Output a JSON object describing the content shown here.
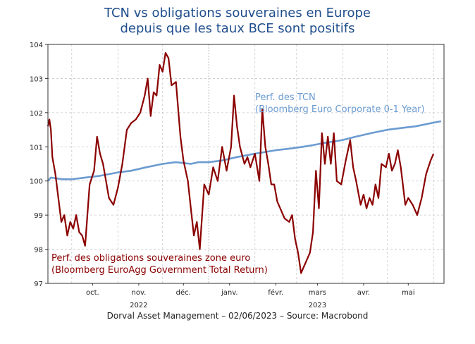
{
  "title": {
    "line1": "TCN vs obligations souveraines en Europe",
    "line2": "depuis que les taux BCE sont positifs"
  },
  "source": "Dorval Asset Management – 02/06/2023 –   Source: Macrobond",
  "colors": {
    "tcn": "#6b9bd1",
    "gov": "#8b0000",
    "title": "#1f4e8c"
  },
  "chart_data": {
    "type": "line",
    "ylim": [
      97,
      104
    ],
    "y_ticks": [
      97,
      98,
      99,
      100,
      101,
      102,
      103,
      104
    ],
    "x_range": [
      "2022-09-15",
      "2023-06-08"
    ],
    "x_ticks": [
      {
        "date": "2022-10-15",
        "label": "oct.",
        "year": ""
      },
      {
        "date": "2022-11-15",
        "label": "nov.",
        "year": "2022"
      },
      {
        "date": "2022-12-15",
        "label": "déc.",
        "year": ""
      },
      {
        "date": "2023-01-15",
        "label": "janv.",
        "year": ""
      },
      {
        "date": "2023-02-15",
        "label": "févr.",
        "year": ""
      },
      {
        "date": "2023-03-15",
        "label": "mars",
        "year": "2023"
      },
      {
        "date": "2023-04-15",
        "label": "avr.",
        "year": ""
      },
      {
        "date": "2023-05-15",
        "label": "mai",
        "year": ""
      }
    ],
    "gridlines_x": [
      "2022-10-01",
      "2022-11-01",
      "2022-12-01",
      "2023-02-01",
      "2023-03-01",
      "2023-04-01",
      "2023-05-01",
      "2023-06-01"
    ],
    "year_divider": "2023-01-01",
    "series": [
      {
        "name": "Perf. des TCN",
        "subname": "(Bloomberg Euro Corporate 0-1 Year)",
        "key": "tcn",
        "points": [
          [
            "2022-09-15",
            100.0
          ],
          [
            "2022-09-17",
            100.1
          ],
          [
            "2022-09-25",
            100.05
          ],
          [
            "2022-10-01",
            100.05
          ],
          [
            "2022-10-10",
            100.1
          ],
          [
            "2022-10-20",
            100.15
          ],
          [
            "2022-11-01",
            100.25
          ],
          [
            "2022-11-10",
            100.3
          ],
          [
            "2022-11-20",
            100.4
          ],
          [
            "2022-12-01",
            100.5
          ],
          [
            "2022-12-10",
            100.55
          ],
          [
            "2022-12-20",
            100.5
          ],
          [
            "2022-12-25",
            100.55
          ],
          [
            "2023-01-01",
            100.55
          ],
          [
            "2023-01-10",
            100.6
          ],
          [
            "2023-01-20",
            100.7
          ],
          [
            "2023-02-01",
            100.8
          ],
          [
            "2023-02-08",
            100.85
          ],
          [
            "2023-02-15",
            100.9
          ],
          [
            "2023-02-25",
            100.95
          ],
          [
            "2023-03-05",
            101.0
          ],
          [
            "2023-03-12",
            101.05
          ],
          [
            "2023-03-18",
            101.1
          ],
          [
            "2023-03-25",
            101.15
          ],
          [
            "2023-04-01",
            101.2
          ],
          [
            "2023-04-10",
            101.3
          ],
          [
            "2023-04-20",
            101.4
          ],
          [
            "2023-05-01",
            101.5
          ],
          [
            "2023-05-10",
            101.55
          ],
          [
            "2023-05-20",
            101.6
          ],
          [
            "2023-05-31",
            101.7
          ],
          [
            "2023-06-06",
            101.75
          ]
        ]
      },
      {
        "name": "Perf. des obligations souveraines zone euro",
        "subname": "(Bloomberg EuroAgg Government Total Return)",
        "key": "gov",
        "points": [
          [
            "2022-09-15",
            101.6
          ],
          [
            "2022-09-16",
            101.8
          ],
          [
            "2022-09-17",
            101.5
          ],
          [
            "2022-09-18",
            100.7
          ],
          [
            "2022-09-20",
            100.2
          ],
          [
            "2022-09-22",
            99.5
          ],
          [
            "2022-09-24",
            98.8
          ],
          [
            "2022-09-26",
            99.0
          ],
          [
            "2022-09-28",
            98.4
          ],
          [
            "2022-09-30",
            98.8
          ],
          [
            "2022-10-02",
            98.6
          ],
          [
            "2022-10-04",
            99.0
          ],
          [
            "2022-10-06",
            98.5
          ],
          [
            "2022-10-08",
            98.4
          ],
          [
            "2022-10-10",
            98.1
          ],
          [
            "2022-10-13",
            99.9
          ],
          [
            "2022-10-16",
            100.3
          ],
          [
            "2022-10-18",
            101.3
          ],
          [
            "2022-10-20",
            100.8
          ],
          [
            "2022-10-22",
            100.5
          ],
          [
            "2022-10-24",
            100.0
          ],
          [
            "2022-10-26",
            99.5
          ],
          [
            "2022-10-29",
            99.3
          ],
          [
            "2022-11-01",
            99.8
          ],
          [
            "2022-11-04",
            100.5
          ],
          [
            "2022-11-07",
            101.5
          ],
          [
            "2022-11-10",
            101.7
          ],
          [
            "2022-11-13",
            101.8
          ],
          [
            "2022-11-16",
            102.0
          ],
          [
            "2022-11-19",
            102.5
          ],
          [
            "2022-11-21",
            103.0
          ],
          [
            "2022-11-23",
            101.9
          ],
          [
            "2022-11-25",
            102.6
          ],
          [
            "2022-11-27",
            102.5
          ],
          [
            "2022-11-29",
            103.4
          ],
          [
            "2022-12-01",
            103.2
          ],
          [
            "2022-12-03",
            103.75
          ],
          [
            "2022-12-05",
            103.6
          ],
          [
            "2022-12-07",
            102.8
          ],
          [
            "2022-12-10",
            102.9
          ],
          [
            "2022-12-13",
            101.3
          ],
          [
            "2022-12-15",
            100.6
          ],
          [
            "2022-12-18",
            100.0
          ],
          [
            "2022-12-20",
            99.2
          ],
          [
            "2022-12-22",
            98.4
          ],
          [
            "2022-12-24",
            98.8
          ],
          [
            "2022-12-26",
            98.0
          ],
          [
            "2022-12-29",
            99.9
          ],
          [
            "2023-01-01",
            99.6
          ],
          [
            "2023-01-04",
            100.4
          ],
          [
            "2023-01-07",
            100.0
          ],
          [
            "2023-01-10",
            101.0
          ],
          [
            "2023-01-13",
            100.3
          ],
          [
            "2023-01-16",
            101.0
          ],
          [
            "2023-01-18",
            102.5
          ],
          [
            "2023-01-20",
            101.6
          ],
          [
            "2023-01-22",
            101.0
          ],
          [
            "2023-01-25",
            100.5
          ],
          [
            "2023-01-27",
            100.7
          ],
          [
            "2023-01-29",
            100.4
          ],
          [
            "2023-02-01",
            100.8
          ],
          [
            "2023-02-04",
            100.0
          ],
          [
            "2023-02-06",
            102.1
          ],
          [
            "2023-02-08",
            101.0
          ],
          [
            "2023-02-10",
            100.5
          ],
          [
            "2023-02-12",
            99.9
          ],
          [
            "2023-02-14",
            99.9
          ],
          [
            "2023-02-16",
            99.4
          ],
          [
            "2023-02-18",
            99.2
          ],
          [
            "2023-02-21",
            98.9
          ],
          [
            "2023-02-24",
            98.8
          ],
          [
            "2023-02-26",
            99.0
          ],
          [
            "2023-02-28",
            98.3
          ],
          [
            "2023-03-02",
            97.9
          ],
          [
            "2023-03-04",
            97.3
          ],
          [
            "2023-03-07",
            97.6
          ],
          [
            "2023-03-10",
            97.9
          ],
          [
            "2023-03-12",
            98.5
          ],
          [
            "2023-03-14",
            100.3
          ],
          [
            "2023-03-16",
            99.2
          ],
          [
            "2023-03-18",
            101.4
          ],
          [
            "2023-03-20",
            100.5
          ],
          [
            "2023-03-22",
            101.3
          ],
          [
            "2023-03-24",
            100.5
          ],
          [
            "2023-03-26",
            101.4
          ],
          [
            "2023-03-28",
            100.0
          ],
          [
            "2023-03-31",
            99.9
          ],
          [
            "2023-04-03",
            100.6
          ],
          [
            "2023-04-06",
            101.2
          ],
          [
            "2023-04-08",
            100.4
          ],
          [
            "2023-04-10",
            100.0
          ],
          [
            "2023-04-13",
            99.3
          ],
          [
            "2023-04-15",
            99.6
          ],
          [
            "2023-04-17",
            99.2
          ],
          [
            "2023-04-19",
            99.5
          ],
          [
            "2023-04-21",
            99.3
          ],
          [
            "2023-04-23",
            99.9
          ],
          [
            "2023-04-25",
            99.5
          ],
          [
            "2023-04-27",
            100.5
          ],
          [
            "2023-04-30",
            100.4
          ],
          [
            "2023-05-02",
            100.8
          ],
          [
            "2023-05-04",
            100.3
          ],
          [
            "2023-05-06",
            100.5
          ],
          [
            "2023-05-08",
            100.9
          ],
          [
            "2023-05-10",
            100.4
          ],
          [
            "2023-05-13",
            99.3
          ],
          [
            "2023-05-15",
            99.5
          ],
          [
            "2023-05-18",
            99.3
          ],
          [
            "2023-05-21",
            99.0
          ],
          [
            "2023-05-24",
            99.5
          ],
          [
            "2023-05-27",
            100.2
          ],
          [
            "2023-05-30",
            100.6
          ],
          [
            "2023-06-01",
            100.8
          ]
        ]
      }
    ],
    "annotations": {
      "tcn": [
        "Perf. des TCN",
        "(Bloomberg Euro Corporate 0-1 Year)"
      ],
      "gov": [
        "Perf. des obligations souveraines zone euro",
        "(Bloomberg EuroAgg Government Total Return)"
      ]
    }
  }
}
